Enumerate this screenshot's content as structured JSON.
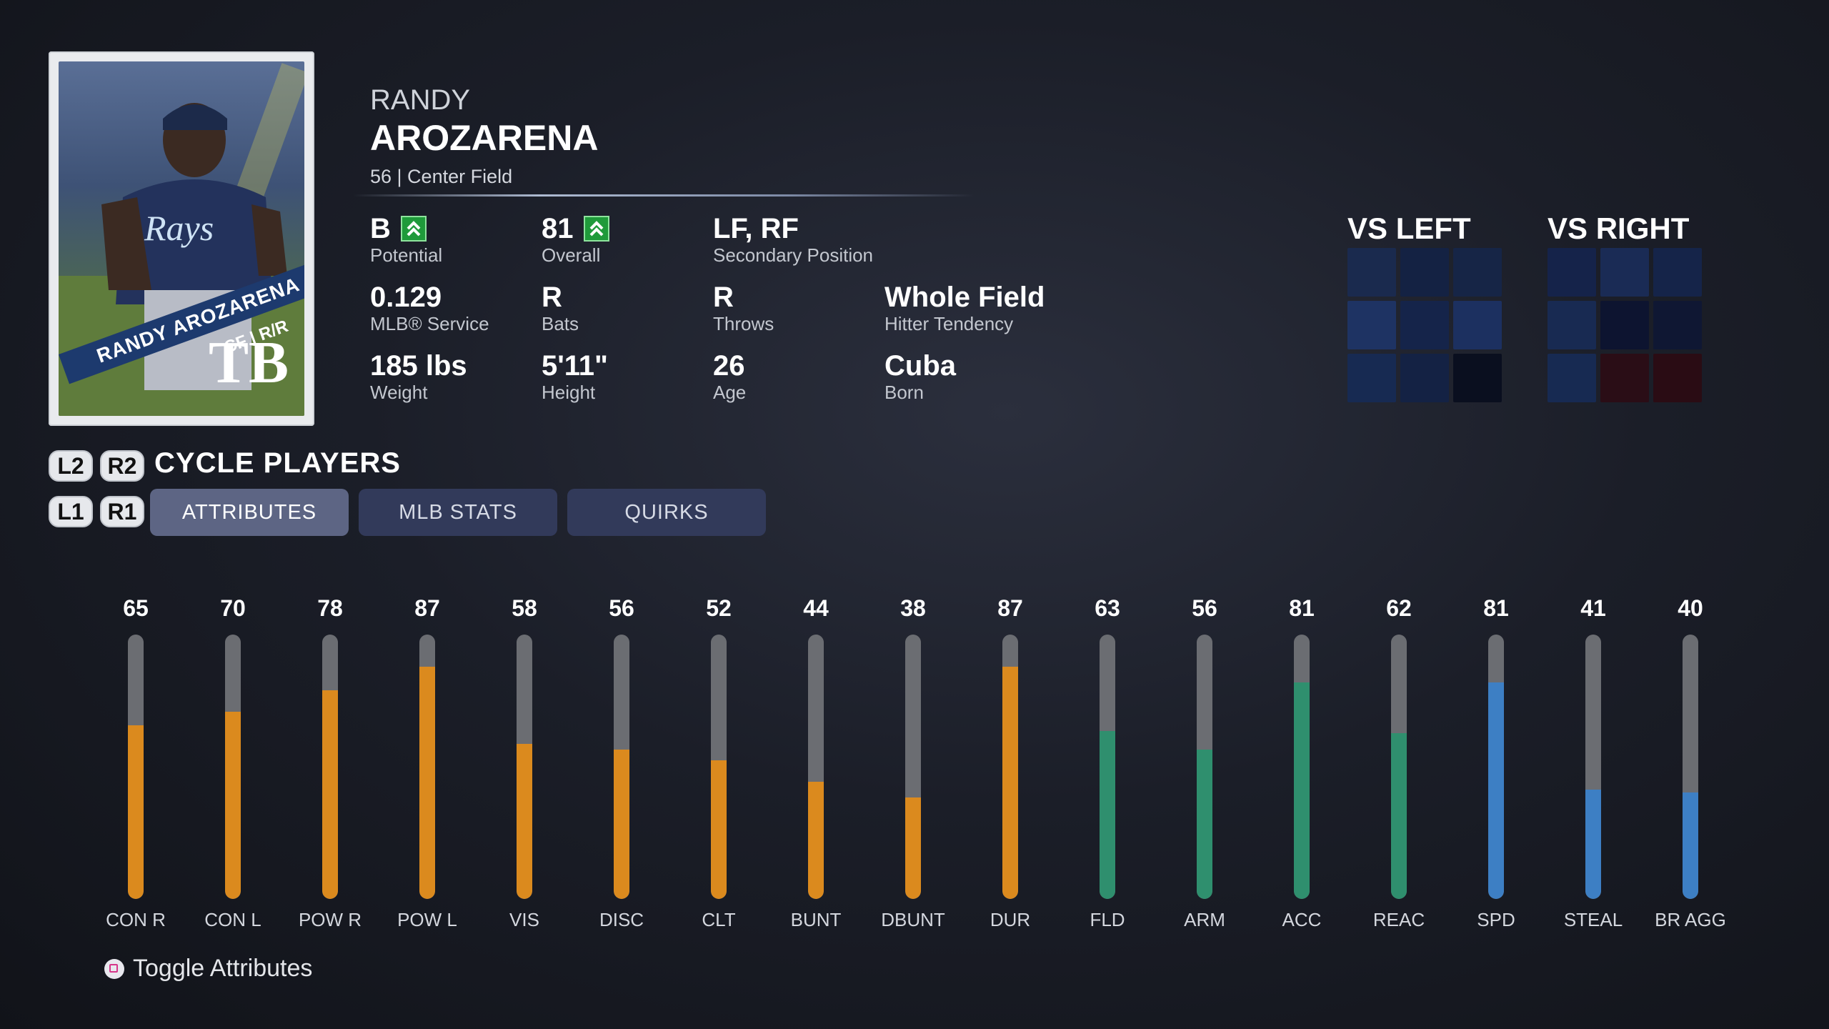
{
  "card": {
    "banner_name": "RANDY AROZARENA",
    "position_hand": "CF | R/R",
    "team_logo": "TB"
  },
  "player": {
    "first_name": "RANDY",
    "last_name": "AROZARENA",
    "subline": "56 | Center Field"
  },
  "stats": {
    "potential": {
      "value": "B",
      "label": "Potential"
    },
    "overall": {
      "value": "81",
      "label": "Overall"
    },
    "secondary": {
      "value": "LF, RF",
      "label": "Secondary Position"
    },
    "service": {
      "value": "0.129",
      "label": "MLB® Service"
    },
    "bats": {
      "value": "R",
      "label": "Bats"
    },
    "throws": {
      "value": "R",
      "label": "Throws"
    },
    "tendency": {
      "value": "Whole Field",
      "label": "Hitter Tendency"
    },
    "weight": {
      "value": "185 lbs",
      "label": "Weight"
    },
    "height": {
      "value": "5'11\"",
      "label": "Height"
    },
    "age": {
      "value": "26",
      "label": "Age"
    },
    "born": {
      "value": "Cuba",
      "label": "Born"
    }
  },
  "vs": {
    "left_title": "VS LEFT",
    "right_title": "VS RIGHT",
    "left_colors": [
      "#1a2a4e",
      "#142243",
      "#162546",
      "#1e3363",
      "#15244a",
      "#1c3060",
      "#172a52",
      "#142244",
      "#0a0f1f"
    ],
    "right_colors": [
      "#15234a",
      "#1a2b55",
      "#152449",
      "#182a52",
      "#0d1430",
      "#0f1733",
      "#172a52",
      "#2a0d16",
      "#2a0c14"
    ]
  },
  "controls": {
    "l2": "L2",
    "r2": "R2",
    "l1": "L1",
    "r1": "R1",
    "cycle_title": "CYCLE PLAYERS",
    "toggle_label": "Toggle Attributes"
  },
  "tabs": [
    {
      "label": "ATTRIBUTES",
      "active": true
    },
    {
      "label": "MLB STATS",
      "active": false
    },
    {
      "label": "QUIRKS",
      "active": false
    }
  ],
  "colors": {
    "hitting": "#db8a1e",
    "fielding": "#2f8f6e",
    "running": "#3d7fc4"
  },
  "attributes": [
    {
      "label": "CON R",
      "value": 65,
      "group": "hitting"
    },
    {
      "label": "CON L",
      "value": 70,
      "group": "hitting"
    },
    {
      "label": "POW R",
      "value": 78,
      "group": "hitting"
    },
    {
      "label": "POW L",
      "value": 87,
      "group": "hitting"
    },
    {
      "label": "VIS",
      "value": 58,
      "group": "hitting"
    },
    {
      "label": "DISC",
      "value": 56,
      "group": "hitting"
    },
    {
      "label": "CLT",
      "value": 52,
      "group": "hitting"
    },
    {
      "label": "BUNT",
      "value": 44,
      "group": "hitting"
    },
    {
      "label": "DBUNT",
      "value": 38,
      "group": "hitting"
    },
    {
      "label": "DUR",
      "value": 87,
      "group": "hitting"
    },
    {
      "label": "FLD",
      "value": 63,
      "group": "fielding"
    },
    {
      "label": "ARM",
      "value": 56,
      "group": "fielding"
    },
    {
      "label": "ACC",
      "value": 81,
      "group": "fielding"
    },
    {
      "label": "REAC",
      "value": 62,
      "group": "fielding"
    },
    {
      "label": "SPD",
      "value": 81,
      "group": "running"
    },
    {
      "label": "STEAL",
      "value": 41,
      "group": "running"
    },
    {
      "label": "BR AGG",
      "value": 40,
      "group": "running"
    }
  ]
}
